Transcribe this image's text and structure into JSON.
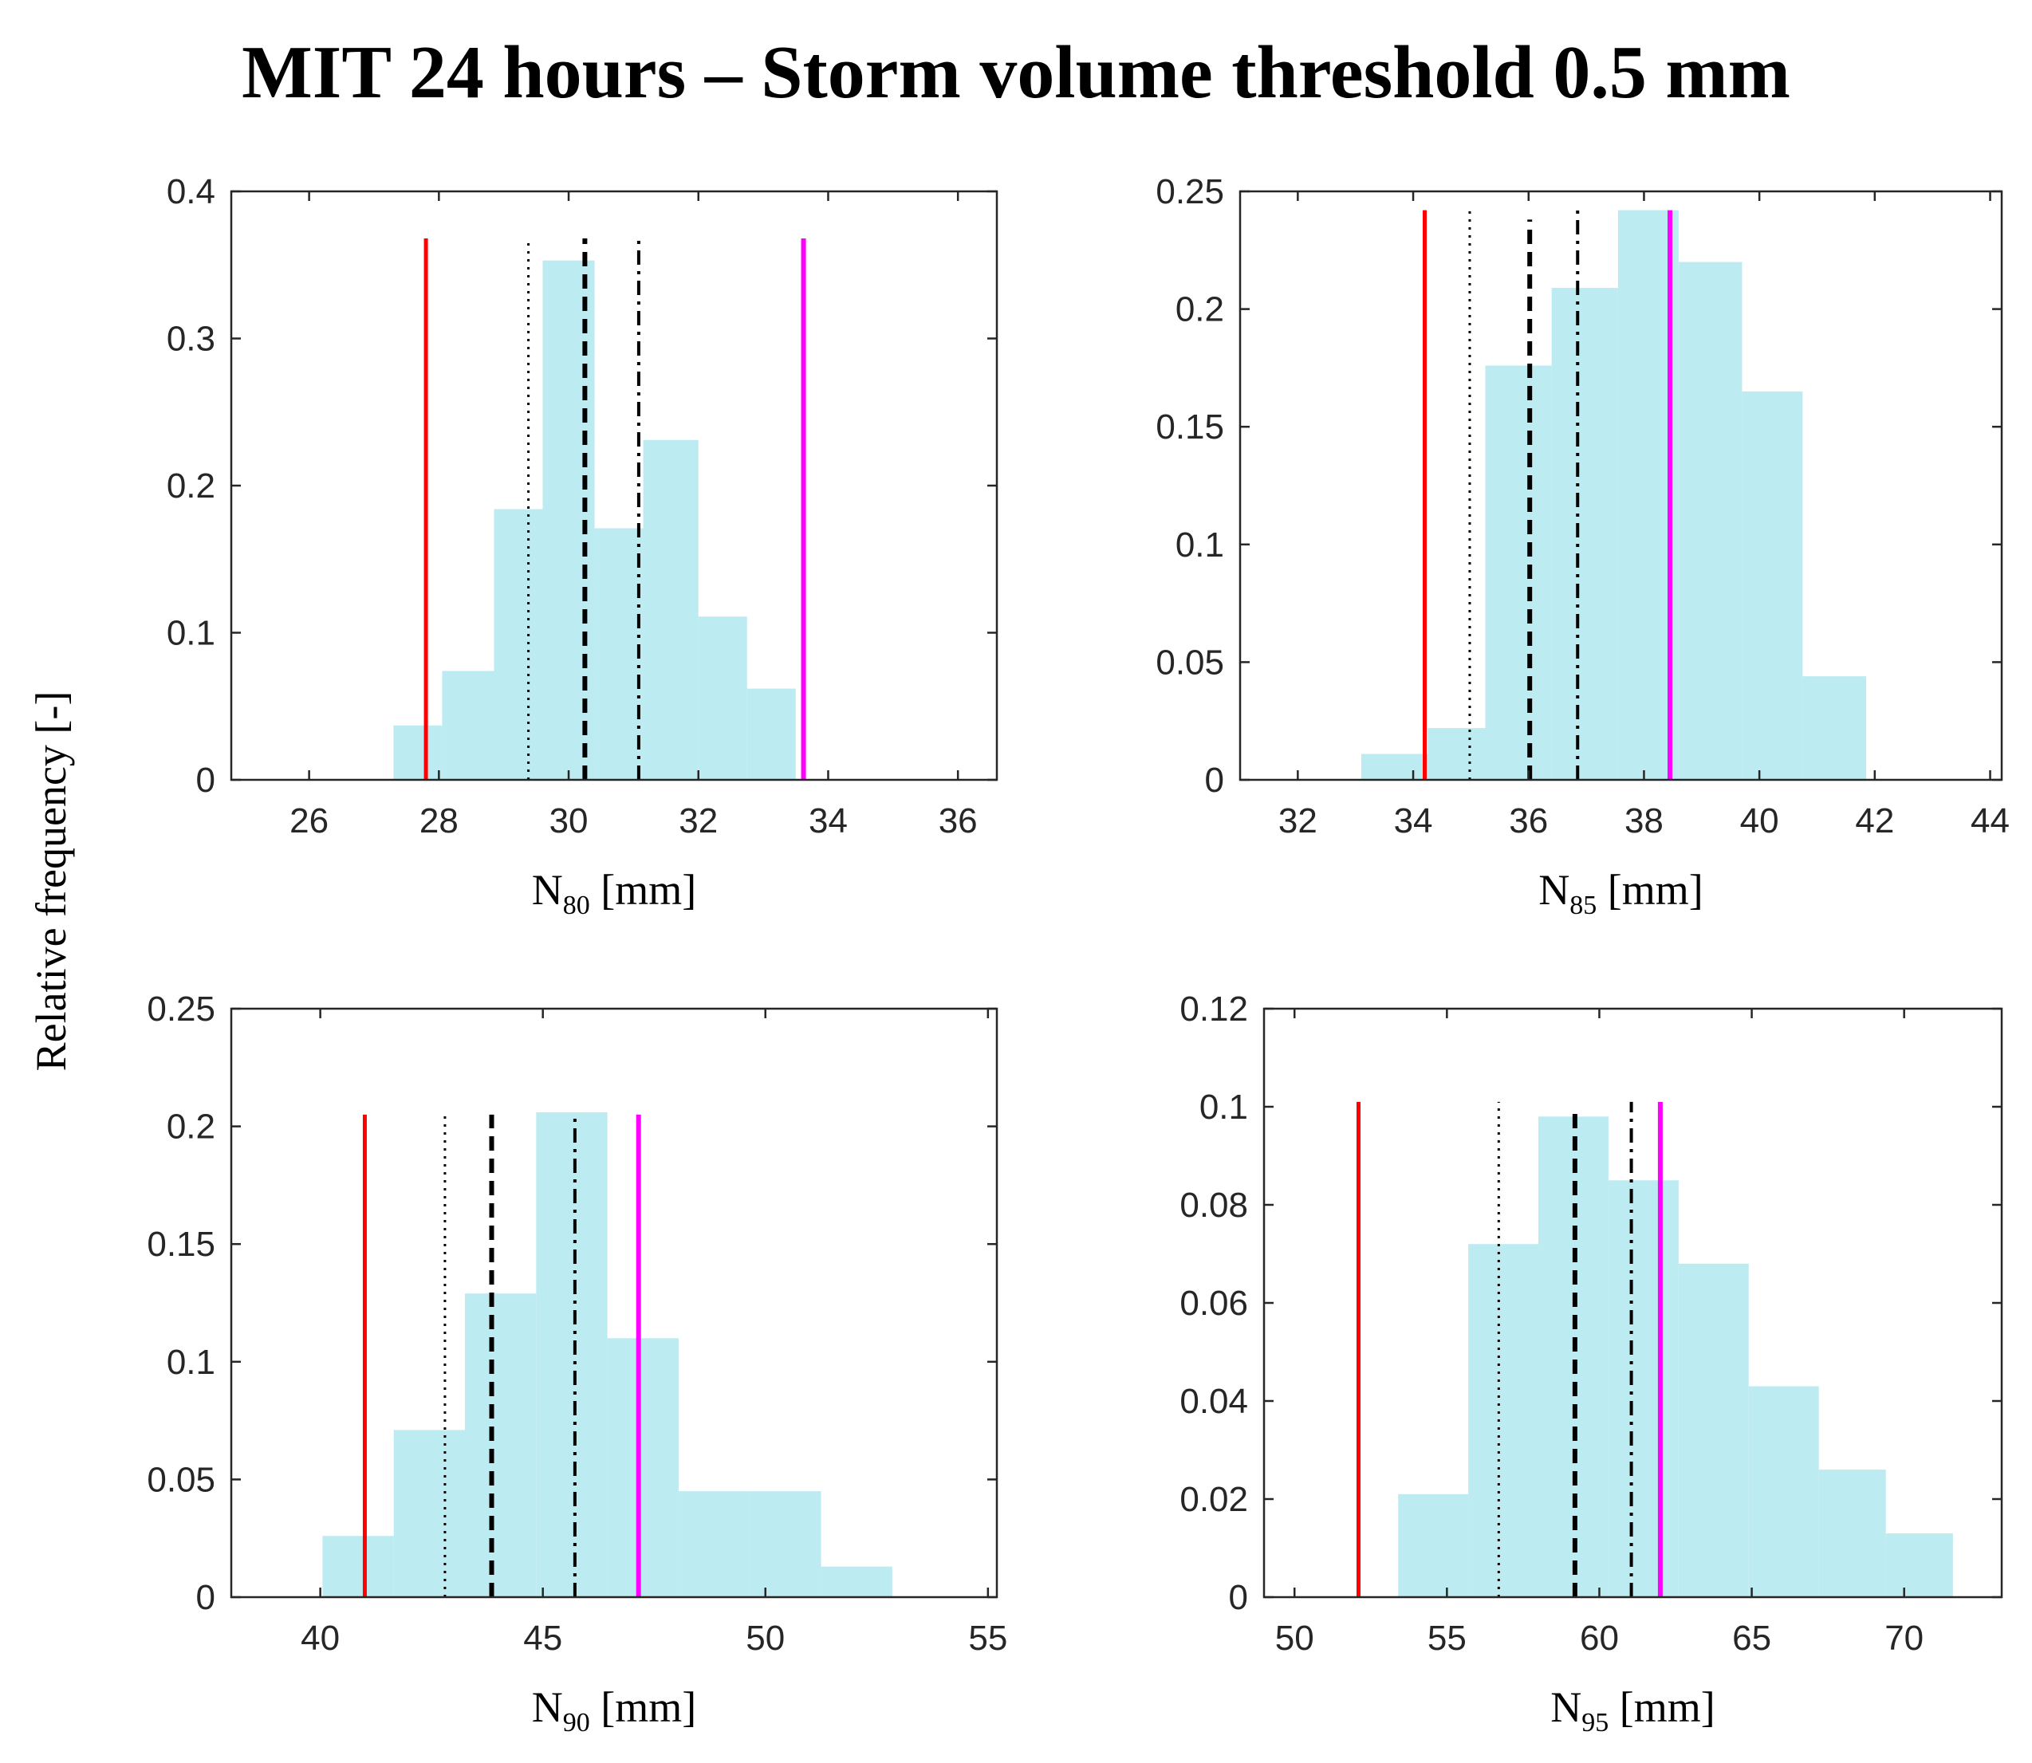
{
  "figure": {
    "title": "MIT 24 hours – Storm volume threshold 0.5 mm",
    "ylabel": "Relative frequency  [-]"
  },
  "colors": {
    "hist_fill": "#bdebf2",
    "red_line": "#ff0000",
    "magenta_line": "#ff00ff",
    "black_line": "#000000",
    "axis": "#262626"
  },
  "chart_data": [
    {
      "type": "bar",
      "xlabel": {
        "base": "N",
        "sub": "80",
        "unit": " [mm]"
      },
      "xlim": [
        24.8,
        36.6
      ],
      "ylim": [
        0,
        0.4
      ],
      "xticks": [
        26,
        28,
        30,
        32,
        34,
        36
      ],
      "yticks": [
        0,
        0.1,
        0.2,
        0.3,
        0.4
      ],
      "ytick_labels": [
        "0",
        "0.1",
        "0.2",
        "0.3",
        "0.4"
      ],
      "bins": [
        {
          "x0": 27.3,
          "x1": 28.05,
          "y": 0.037
        },
        {
          "x0": 28.05,
          "x1": 28.85,
          "y": 0.074
        },
        {
          "x0": 28.85,
          "x1": 29.6,
          "y": 0.184
        },
        {
          "x0": 29.6,
          "x1": 30.4,
          "y": 0.353
        },
        {
          "x0": 30.4,
          "x1": 31.15,
          "y": 0.171
        },
        {
          "x0": 31.15,
          "x1": 32.0,
          "y": 0.231
        },
        {
          "x0": 32.0,
          "x1": 32.75,
          "y": 0.111
        },
        {
          "x0": 32.75,
          "x1": 33.5,
          "y": 0.062
        }
      ],
      "lines": [
        {
          "style": "solid-red",
          "x": 27.8,
          "y": 0.368
        },
        {
          "style": "dotted",
          "x": 29.38,
          "y": 0.368
        },
        {
          "style": "dashed",
          "x": 30.25,
          "y": 0.368
        },
        {
          "style": "dashdot",
          "x": 31.08,
          "y": 0.368
        },
        {
          "style": "solid-magenta",
          "x": 33.62,
          "y": 0.368
        }
      ]
    },
    {
      "type": "bar",
      "xlabel": {
        "base": "N",
        "sub": "85",
        "unit": " [mm]"
      },
      "xlim": [
        31.0,
        44.2
      ],
      "ylim": [
        0,
        0.25
      ],
      "xticks": [
        32,
        34,
        36,
        38,
        40,
        42,
        44
      ],
      "yticks": [
        0,
        0.05,
        0.1,
        0.15,
        0.2,
        0.25
      ],
      "ytick_labels": [
        "0",
        "0.05",
        "0.1",
        "0.15",
        "0.2",
        "0.25"
      ],
      "bins": [
        {
          "x0": 33.1,
          "x1": 34.25,
          "y": 0.011
        },
        {
          "x0": 34.25,
          "x1": 35.25,
          "y": 0.022
        },
        {
          "x0": 35.25,
          "x1": 36.4,
          "y": 0.176
        },
        {
          "x0": 36.4,
          "x1": 37.55,
          "y": 0.209
        },
        {
          "x0": 37.55,
          "x1": 38.6,
          "y": 0.242
        },
        {
          "x0": 38.6,
          "x1": 39.7,
          "y": 0.22
        },
        {
          "x0": 39.7,
          "x1": 40.75,
          "y": 0.165
        },
        {
          "x0": 40.75,
          "x1": 41.85,
          "y": 0.044
        }
      ],
      "lines": [
        {
          "style": "solid-red",
          "x": 34.2,
          "y": 0.242
        },
        {
          "style": "dotted",
          "x": 34.98,
          "y": 0.242
        },
        {
          "style": "dashed",
          "x": 36.02,
          "y": 0.238
        },
        {
          "style": "dashdot",
          "x": 36.85,
          "y": 0.242
        },
        {
          "style": "solid-magenta",
          "x": 38.45,
          "y": 0.242
        }
      ]
    },
    {
      "type": "bar",
      "xlabel": {
        "base": "N",
        "sub": "90",
        "unit": " [mm]"
      },
      "xlim": [
        38.0,
        55.2
      ],
      "ylim": [
        0,
        0.25
      ],
      "xticks": [
        40,
        45,
        50,
        55
      ],
      "yticks": [
        0,
        0.05,
        0.1,
        0.15,
        0.2,
        0.25
      ],
      "ytick_labels": [
        "0",
        "0.05",
        "0.1",
        "0.15",
        "0.2",
        "0.25"
      ],
      "bins": [
        {
          "x0": 40.05,
          "x1": 41.65,
          "y": 0.026
        },
        {
          "x0": 41.65,
          "x1": 43.25,
          "y": 0.071
        },
        {
          "x0": 43.25,
          "x1": 44.85,
          "y": 0.129
        },
        {
          "x0": 44.85,
          "x1": 46.45,
          "y": 0.206
        },
        {
          "x0": 46.45,
          "x1": 48.05,
          "y": 0.11
        },
        {
          "x0": 48.05,
          "x1": 49.65,
          "y": 0.045
        },
        {
          "x0": 49.65,
          "x1": 51.25,
          "y": 0.045
        },
        {
          "x0": 51.25,
          "x1": 52.85,
          "y": 0.013
        }
      ],
      "lines": [
        {
          "style": "solid-red",
          "x": 41.0,
          "y": 0.205
        },
        {
          "style": "dotted",
          "x": 42.8,
          "y": 0.205
        },
        {
          "style": "dashed",
          "x": 43.85,
          "y": 0.205
        },
        {
          "style": "dashdot",
          "x": 45.72,
          "y": 0.205
        },
        {
          "style": "solid-magenta",
          "x": 47.15,
          "y": 0.205
        }
      ]
    },
    {
      "type": "bar",
      "xlabel": {
        "base": "N",
        "sub": "95",
        "unit": " [mm]"
      },
      "xlim": [
        49.0,
        73.2
      ],
      "ylim": [
        0,
        0.12
      ],
      "xticks": [
        50,
        55,
        60,
        65,
        70
      ],
      "yticks": [
        0,
        0.02,
        0.04,
        0.06,
        0.08,
        0.1,
        0.12
      ],
      "ytick_labels": [
        "0",
        "0.02",
        "0.04",
        "0.06",
        "0.08",
        "0.1",
        "0.12"
      ],
      "bins": [
        {
          "x0": 53.4,
          "x1": 55.7,
          "y": 0.021
        },
        {
          "x0": 55.7,
          "x1": 58.0,
          "y": 0.072
        },
        {
          "x0": 58.0,
          "x1": 60.3,
          "y": 0.098
        },
        {
          "x0": 60.3,
          "x1": 62.6,
          "y": 0.085
        },
        {
          "x0": 62.6,
          "x1": 64.9,
          "y": 0.068
        },
        {
          "x0": 64.9,
          "x1": 67.2,
          "y": 0.043
        },
        {
          "x0": 67.2,
          "x1": 69.4,
          "y": 0.026
        },
        {
          "x0": 69.4,
          "x1": 71.6,
          "y": 0.013
        }
      ],
      "lines": [
        {
          "style": "solid-red",
          "x": 52.1,
          "y": 0.101
        },
        {
          "style": "dotted",
          "x": 56.7,
          "y": 0.101
        },
        {
          "style": "dashed",
          "x": 59.2,
          "y": 0.099
        },
        {
          "style": "dashdot",
          "x": 61.05,
          "y": 0.101
        },
        {
          "style": "solid-magenta",
          "x": 62.0,
          "y": 0.101
        }
      ]
    }
  ]
}
